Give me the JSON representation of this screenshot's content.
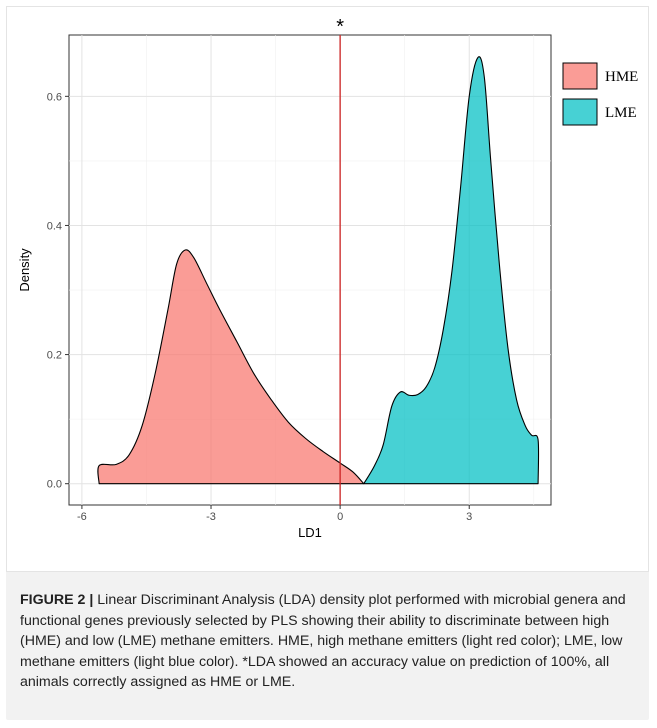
{
  "chart_data": {
    "type": "area",
    "xlabel": "LD1",
    "ylabel": "Density",
    "xlim": [
      -6.3,
      4.9
    ],
    "ylim": [
      -0.033,
      0.695
    ],
    "x_ticks": [
      -6,
      -3,
      0,
      3
    ],
    "x_tick_labels": [
      "-6",
      "-3",
      "0",
      "3"
    ],
    "y_ticks": [
      0.0,
      0.2,
      0.4,
      0.6
    ],
    "y_tick_labels": [
      "0.0",
      "0.2",
      "0.4",
      "0.6"
    ],
    "grid": true,
    "legend_position": "top-right",
    "annotation": "*",
    "vline_x": 0,
    "vline_color": "#cc2222",
    "series": [
      {
        "name": "HME",
        "color": "#f8766d",
        "x": [
          -5.6,
          -5.6,
          -5.2,
          -4.9,
          -4.6,
          -4.3,
          -4.0,
          -3.8,
          -3.6,
          -3.4,
          -3.1,
          -2.8,
          -2.4,
          -2.0,
          -1.6,
          -1.2,
          -0.8,
          -0.4,
          0.0,
          0.3,
          0.55
        ],
        "y": [
          0.0,
          0.028,
          0.03,
          0.045,
          0.09,
          0.17,
          0.27,
          0.34,
          0.362,
          0.35,
          0.31,
          0.27,
          0.22,
          0.17,
          0.13,
          0.095,
          0.07,
          0.05,
          0.032,
          0.018,
          0.0
        ]
      },
      {
        "name": "LME",
        "color": "#00bfc4",
        "x": [
          0.55,
          0.8,
          1.0,
          1.2,
          1.4,
          1.6,
          1.8,
          2.0,
          2.2,
          2.4,
          2.6,
          2.8,
          3.0,
          3.2,
          3.35,
          3.5,
          3.7,
          3.9,
          4.1,
          4.3,
          4.45,
          4.6,
          4.6
        ],
        "y": [
          0.0,
          0.028,
          0.06,
          0.12,
          0.142,
          0.137,
          0.138,
          0.15,
          0.18,
          0.24,
          0.33,
          0.46,
          0.6,
          0.66,
          0.63,
          0.5,
          0.34,
          0.21,
          0.13,
          0.09,
          0.075,
          0.068,
          0.0
        ]
      }
    ]
  },
  "caption": {
    "label": "FIGURE 2 |",
    "text": " Linear Discriminant Analysis (LDA) density plot performed with microbial genera and functional genes previously selected by PLS showing their ability to discriminate between high (HME) and low (LME) methane emitters. HME, high methane emitters (light red color); LME, low methane emitters (light blue color). *LDA showed an accuracy value on prediction of 100%, all animals correctly assigned as HME or LME."
  }
}
